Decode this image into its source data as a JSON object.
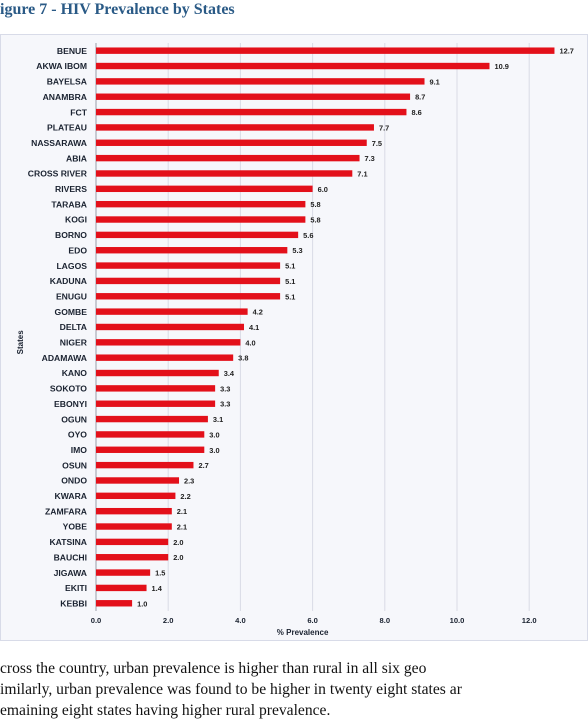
{
  "figure": {
    "title": "igure 7 - HIV Prevalence by States"
  },
  "chart_data": {
    "type": "bar",
    "orientation": "horizontal",
    "categories": [
      "BENUE",
      "AKWA IBOM",
      "BAYELSA",
      "ANAMBRA",
      "FCT",
      "PLATEAU",
      "NASSARAWA",
      "ABIA",
      "CROSS RIVER",
      "RIVERS",
      "TARABA",
      "KOGI",
      "BORNO",
      "EDO",
      "LAGOS",
      "KADUNA",
      "ENUGU",
      "GOMBE",
      "DELTA",
      "NIGER",
      "ADAMAWA",
      "KANO",
      "SOKOTO",
      "EBONYI",
      "OGUN",
      "OYO",
      "IMO",
      "OSUN",
      "ONDO",
      "KWARA",
      "ZAMFARA",
      "YOBE",
      "KATSINA",
      "BAUCHI",
      "JIGAWA",
      "EKITI",
      "KEBBI"
    ],
    "values": [
      12.7,
      10.9,
      9.1,
      8.7,
      8.6,
      7.7,
      7.5,
      7.3,
      7.1,
      6.0,
      5.8,
      5.8,
      5.6,
      5.3,
      5.1,
      5.1,
      5.1,
      4.2,
      4.1,
      4.0,
      3.8,
      3.4,
      3.3,
      3.3,
      3.1,
      3.0,
      3.0,
      2.7,
      2.3,
      2.2,
      2.1,
      2.1,
      2.0,
      2.0,
      1.5,
      1.4,
      1.0
    ],
    "value_labels": [
      "12.7",
      "10.9",
      "9.1",
      "8.7",
      "8.6",
      "7.7",
      "7.5",
      "7.3",
      "7.1",
      "6.0",
      "5.8",
      "5.8",
      "5.6",
      "5.3",
      "5.1",
      "5.1",
      "5.1",
      "4.2",
      "4.1",
      "4.0",
      "3.8",
      "3.4",
      "3.3",
      "3.3",
      "3.1",
      "3.0",
      "3.0",
      "2.7",
      "2.3",
      "2.2",
      "2.1",
      "2.1",
      "2.0",
      "2.0",
      "1.5",
      "1.4",
      "1.0"
    ],
    "xticks": [
      "0.0",
      "2.0",
      "4.0",
      "6.0",
      "8.0",
      "10.0",
      "12.0"
    ],
    "xlim": [
      0,
      13
    ],
    "xlabel": "% Prevalence",
    "ylabel": "States",
    "bar_color": "#e3101a",
    "grid": true
  },
  "body_text": {
    "line1": "cross the country, urban prevalence is higher than rural in all six geo",
    "line2": "imilarly, urban prevalence was found to be higher in twenty eight states ar",
    "line3": "emaining eight states having higher rural prevalence."
  }
}
